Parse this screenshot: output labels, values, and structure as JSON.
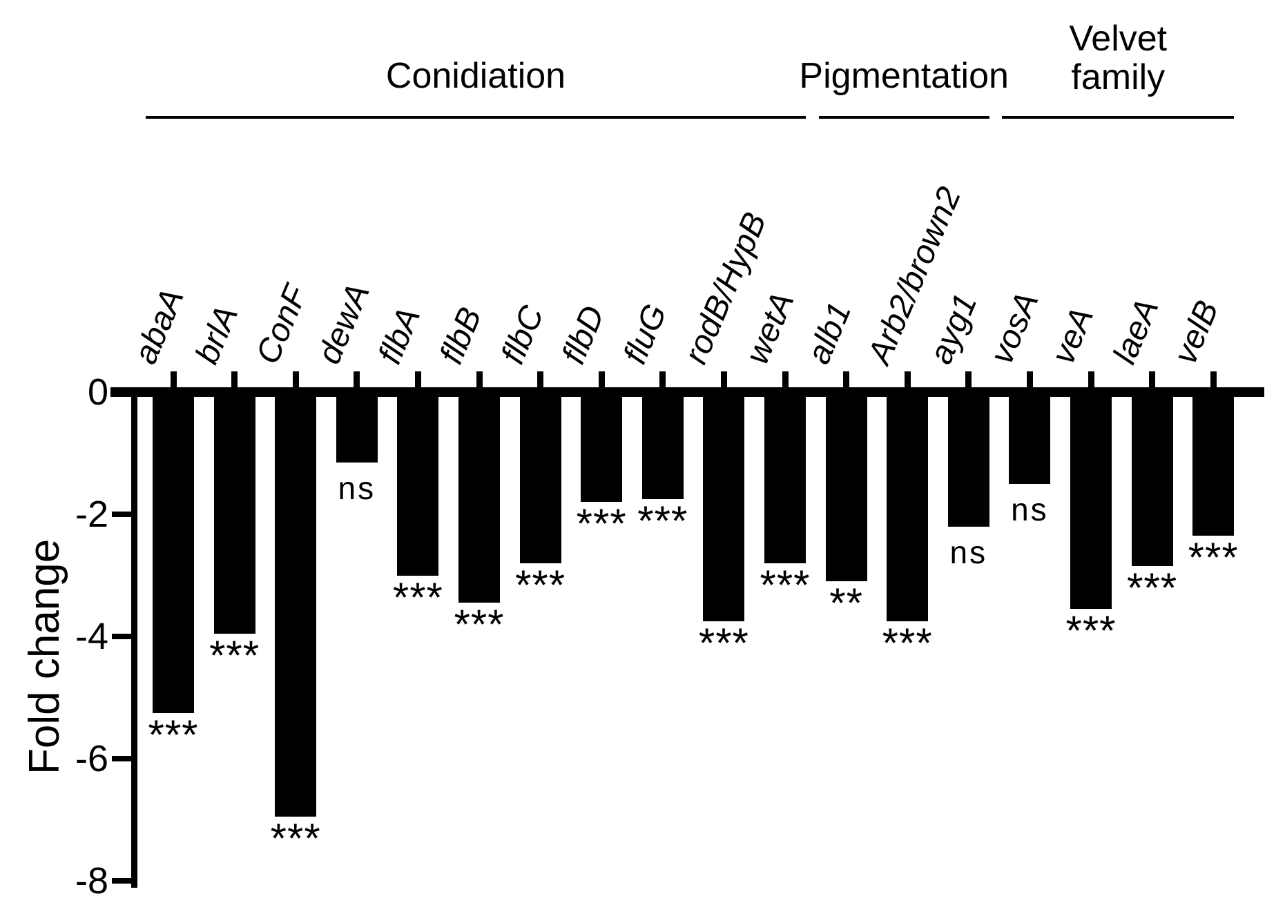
{
  "figure": {
    "background_color": "#ffffff",
    "bar_color": "#000000",
    "text_color": "#000000"
  },
  "chart_data": {
    "type": "bar",
    "title": "",
    "xlabel": "",
    "ylabel": "Fold change",
    "ylim": [
      -8,
      0
    ],
    "yticks": [
      0,
      -2,
      -4,
      -6,
      -8
    ],
    "ytick_labels": [
      "0",
      "-2",
      "-4",
      "-6",
      "-8"
    ],
    "grid": false,
    "legend_position": "none",
    "bar_color": "#000000",
    "orientation": "vertical-negative",
    "categories": [
      "abaA",
      "brlA",
      "ConF",
      "dewA",
      "flbA",
      "flbB",
      "flbC",
      "flbD",
      "fluG",
      "rodB/HypB",
      "wetA",
      "alb1",
      "Arb2/brown2",
      "ayg1",
      "vosA",
      "veA",
      "laeA",
      "velB"
    ],
    "values": [
      -5.25,
      -3.95,
      -6.95,
      -1.15,
      -3.0,
      -3.45,
      -2.8,
      -1.8,
      -1.75,
      -3.75,
      -2.8,
      -3.1,
      -3.75,
      -2.2,
      -1.5,
      -3.55,
      -2.85,
      -2.35
    ],
    "significance": [
      "***",
      "***",
      "***",
      "ns",
      "***",
      "***",
      "***",
      "***",
      "***",
      "***",
      "***",
      "**",
      "***",
      "ns",
      "ns",
      "***",
      "***",
      "***"
    ],
    "groups": [
      {
        "label": "Conidiation",
        "from_gene": 0,
        "to_gene": 10
      },
      {
        "label": "Pigmentation",
        "from_gene": 11,
        "to_gene": 13
      },
      {
        "label": "Velvet\nfamily",
        "from_gene": 14,
        "to_gene": 17
      }
    ]
  }
}
